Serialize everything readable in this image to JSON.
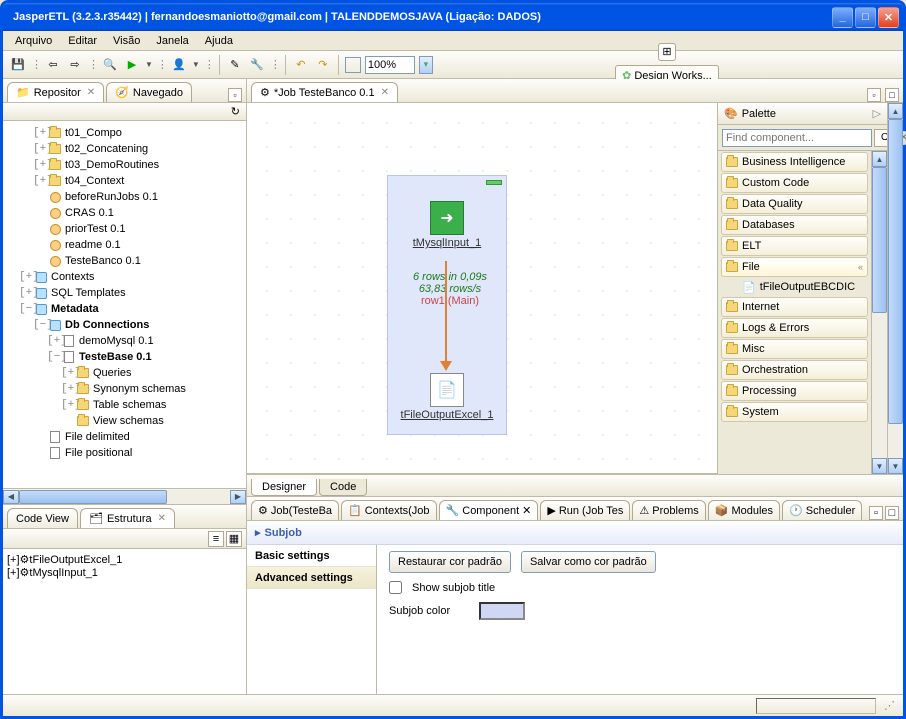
{
  "window": {
    "title": "JasperETL (3.2.3.r35442)  |  fernandoesmaniotto@gmail.com  |  TALENDDEMOSJAVA (Ligação: DADOS)"
  },
  "menu": {
    "items": [
      "Arquivo",
      "Editar",
      "Visão",
      "Janela",
      "Ajuda"
    ]
  },
  "toolbar": {
    "zoom": "100%",
    "design_works": "Design Works..."
  },
  "left_tabs": {
    "repo": "Repositor",
    "nav": "Navegado"
  },
  "tree": {
    "rows": [
      {
        "indent": 2,
        "tw": "+",
        "icon": "folder",
        "label": "t01_Compo"
      },
      {
        "indent": 2,
        "tw": "+",
        "icon": "folder",
        "label": "t02_Concatening"
      },
      {
        "indent": 2,
        "tw": "+",
        "icon": "folder",
        "label": "t03_DemoRoutines"
      },
      {
        "indent": 2,
        "tw": "+",
        "icon": "folder",
        "label": "t04_Context"
      },
      {
        "indent": 2,
        "tw": "",
        "icon": "job",
        "label": "beforeRunJobs 0.1"
      },
      {
        "indent": 2,
        "tw": "",
        "icon": "job",
        "label": "CRAS 0.1"
      },
      {
        "indent": 2,
        "tw": "",
        "icon": "job",
        "label": "priorTest 0.1"
      },
      {
        "indent": 2,
        "tw": "",
        "icon": "job",
        "label": "readme 0.1"
      },
      {
        "indent": 2,
        "tw": "",
        "icon": "job",
        "label": "TesteBanco 0.1"
      },
      {
        "indent": 1,
        "tw": "+",
        "icon": "pkg",
        "label": "Contexts"
      },
      {
        "indent": 1,
        "tw": "+",
        "icon": "pkg",
        "label": "SQL Templates"
      },
      {
        "indent": 1,
        "tw": "−",
        "icon": "pkg",
        "label": "Metadata",
        "bold": true
      },
      {
        "indent": 2,
        "tw": "−",
        "icon": "pkg",
        "label": "Db Connections",
        "bold": true
      },
      {
        "indent": 3,
        "tw": "+",
        "icon": "doc",
        "label": "demoMysql 0.1"
      },
      {
        "indent": 3,
        "tw": "−",
        "icon": "doc",
        "label": "TesteBase 0.1",
        "bold": true
      },
      {
        "indent": 4,
        "tw": "+",
        "icon": "folder",
        "label": "Queries"
      },
      {
        "indent": 4,
        "tw": "+",
        "icon": "folder",
        "label": "Synonym schemas"
      },
      {
        "indent": 4,
        "tw": "+",
        "icon": "folder",
        "label": "Table schemas"
      },
      {
        "indent": 4,
        "tw": "",
        "icon": "folder",
        "label": "View schemas"
      },
      {
        "indent": 2,
        "tw": "",
        "icon": "doc",
        "label": "File delimited"
      },
      {
        "indent": 2,
        "tw": "",
        "icon": "doc",
        "label": "File positional"
      }
    ]
  },
  "lower_left": {
    "tabs": [
      "Code View",
      "Estrutura"
    ],
    "items": [
      "tFileOutputExcel_1",
      "tMysqlInput_1"
    ]
  },
  "editor": {
    "tab": "*Job TesteBanco 0.1",
    "comp1": "tMysqlInput_1",
    "comp2": "tFileOutputExcel_1",
    "stats_rows": "6 rows in 0,09s",
    "stats_rate": "63,83 rows/s",
    "link_name": "row1 (Main)",
    "bottom_tabs": [
      "Designer",
      "Code"
    ]
  },
  "palette": {
    "title": "Palette",
    "search_ph": "Find component...",
    "ok": "OK",
    "cats": [
      "Business Intelligence",
      "Custom Code",
      "Data Quality",
      "Databases",
      "ELT"
    ],
    "open_cat": "File",
    "sub": "tFileOutputEBCDIC",
    "cats2": [
      "Internet",
      "Logs & Errors",
      "Misc",
      "Orchestration",
      "Processing",
      "System"
    ]
  },
  "bottom_tabs": {
    "tabs": [
      "Job(TesteBa",
      "Contexts(Job",
      "Component",
      "Run (Job Tes",
      "Problems",
      "Modules",
      "Scheduler"
    ]
  },
  "component_panel": {
    "section": "Subjob",
    "side": [
      "Basic settings",
      "Advanced settings"
    ],
    "btn_restore": "Restaurar cor padrão",
    "btn_save": "Salvar como cor padrão",
    "cb_label": "Show subjob title",
    "color_label": "Subjob color",
    "swatch_color": "#d0d7f5"
  }
}
